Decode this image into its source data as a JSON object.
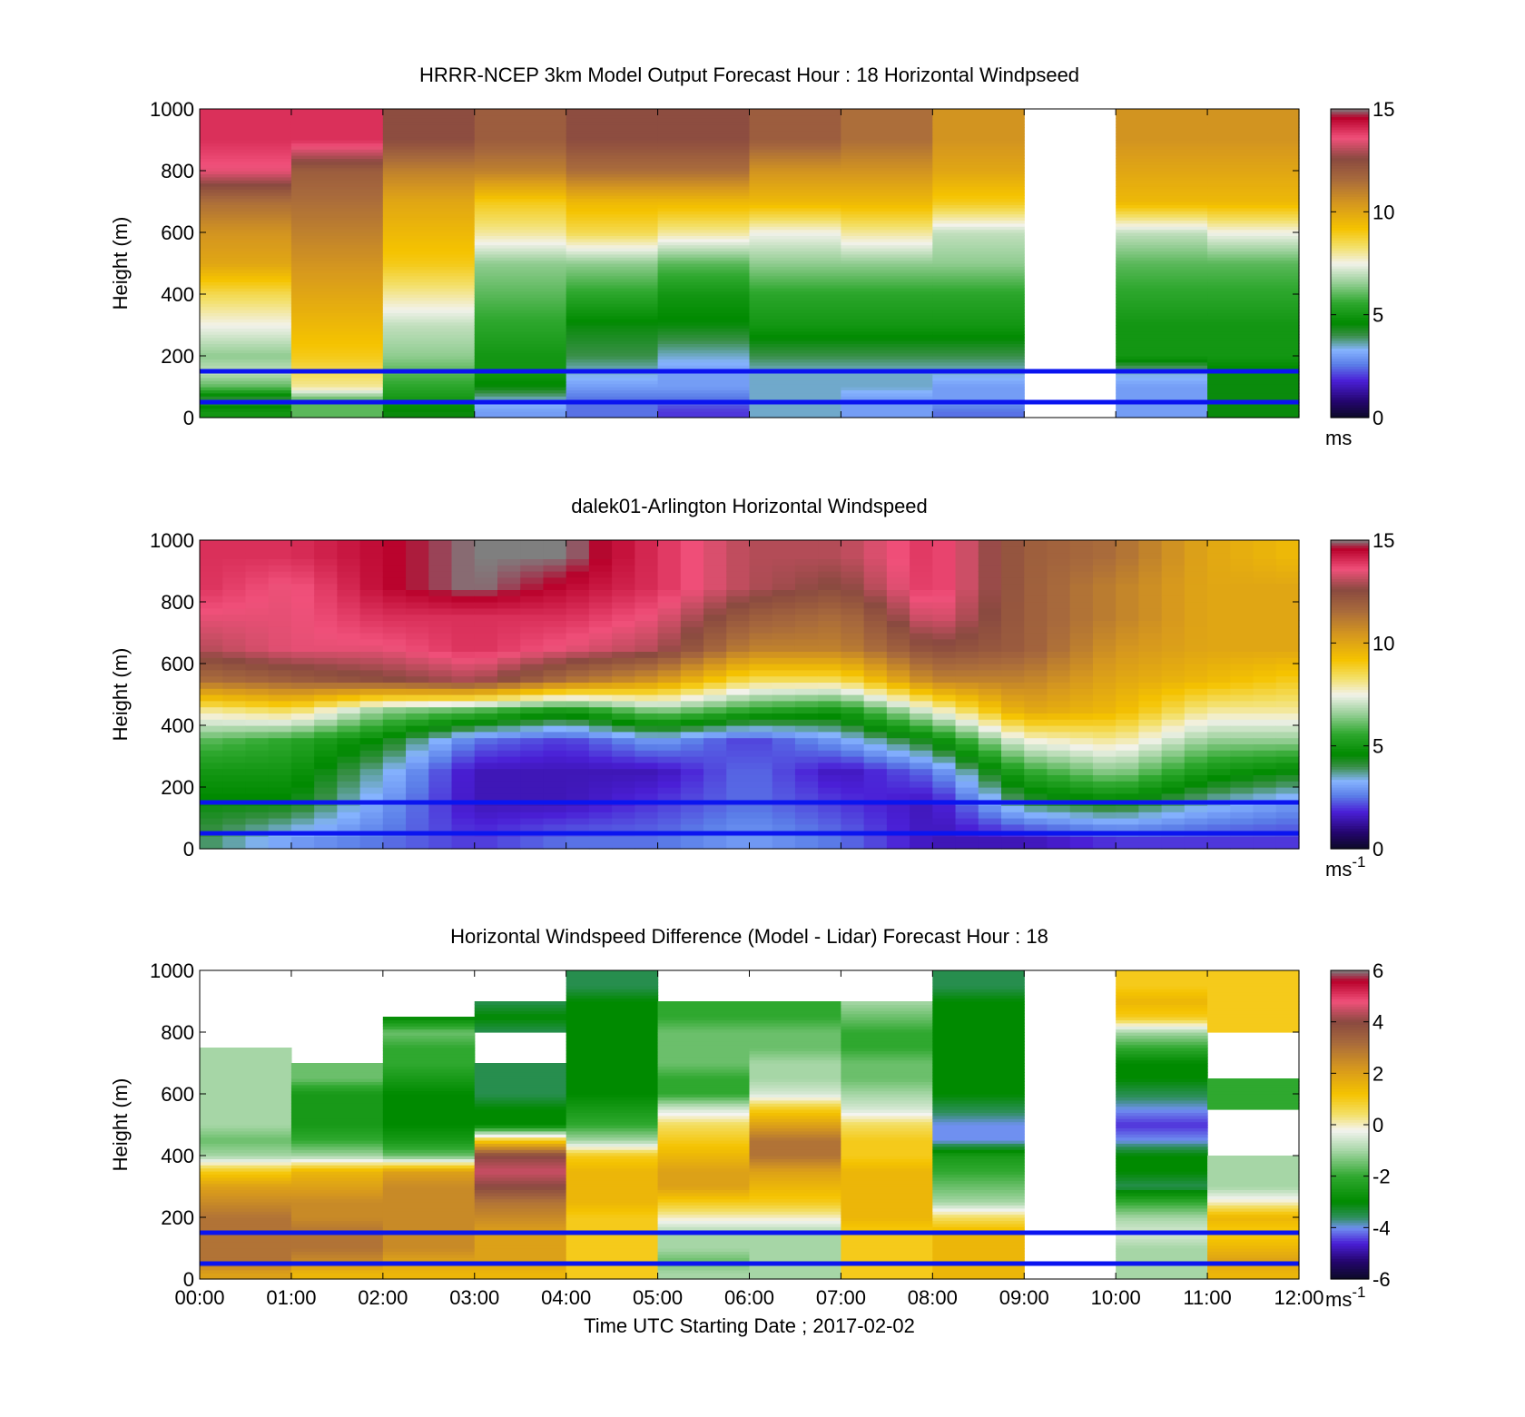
{
  "figure": {
    "xlabel": "Time UTC  Starting Date ; 2017-02-02",
    "x_ticks": [
      "00:00",
      "01:00",
      "02:00",
      "03:00",
      "04:00",
      "05:00",
      "06:00",
      "07:00",
      "08:00",
      "09:00",
      "10:00",
      "11:00",
      "12:00"
    ]
  },
  "colors": {
    "reference_lines": "#0a14f0",
    "missing": "#ffffff"
  },
  "chart_data": [
    {
      "type": "heatmap",
      "title": "HRRR-NCEP 3km Model Output   Forecast Hour : 18 Horizontal Windpseed",
      "ylabel": "Height (m)",
      "xlim": [
        0,
        12
      ],
      "ylim": [
        0,
        1000
      ],
      "y_ticks": [
        "0",
        "200",
        "400",
        "600",
        "800",
        "1000"
      ],
      "colorbar": {
        "min": 0,
        "max": 15,
        "ticks": [
          "0",
          "5",
          "10",
          "15"
        ],
        "unit": "ms",
        "unit_sup": ""
      },
      "reference_lines_m": [
        50,
        150
      ],
      "missing_columns_hours": [
        9
      ],
      "columns_hours": [
        0,
        1,
        2,
        3,
        4,
        5,
        6,
        7,
        8,
        10,
        11
      ],
      "heights_m": [
        20,
        60,
        100,
        150,
        200,
        300,
        400,
        500,
        600,
        700,
        800,
        900
      ],
      "values": [
        [
          5,
          4,
          6,
          7,
          6.5,
          7.5,
          8.5,
          10,
          10.5,
          11.5,
          13.5,
          14
        ],
        [
          6,
          6,
          8,
          8.5,
          9,
          9.5,
          10,
          10.5,
          11,
          11.5,
          12,
          14
        ],
        [
          4.5,
          5,
          5.5,
          6,
          6.5,
          7,
          8,
          9,
          9.5,
          10,
          11,
          12.5
        ],
        [
          3,
          3.5,
          4.5,
          5,
          5,
          5.5,
          6,
          6.5,
          8,
          9,
          11,
          12
        ],
        [
          2.5,
          2.5,
          3,
          3.5,
          4,
          4.5,
          5.5,
          6.5,
          8.5,
          9.5,
          11.5,
          12.5
        ],
        [
          2,
          2.5,
          3,
          3,
          3.5,
          4.5,
          5,
          6,
          8,
          9.5,
          11.5,
          12.5
        ],
        [
          3.5,
          3.5,
          3.5,
          3.5,
          4,
          5,
          5.5,
          6.5,
          7.5,
          9.5,
          10.5,
          12
        ],
        [
          3,
          3,
          3.5,
          3.5,
          4,
          5,
          5.5,
          6.5,
          8,
          9.5,
          10.5,
          11.5
        ],
        [
          2.5,
          3,
          3,
          3.5,
          4,
          5,
          5.5,
          6.5,
          7,
          9,
          10,
          10.5
        ],
        [
          3,
          3,
          3,
          3.5,
          5,
          5,
          5.5,
          6,
          7,
          9.5,
          10,
          10.5
        ],
        [
          4.5,
          4.5,
          4.5,
          4.5,
          5,
          5,
          5.5,
          6,
          7.5,
          9.5,
          10,
          10.5
        ]
      ]
    },
    {
      "type": "heatmap",
      "title": "dalek01-Arlington  Horizontal Windspeed",
      "ylabel": "Height (m)",
      "xlim": [
        0,
        12
      ],
      "ylim": [
        0,
        1000
      ],
      "y_ticks": [
        "0",
        "200",
        "400",
        "600",
        "800",
        "1000"
      ],
      "colorbar": {
        "min": 0,
        "max": 15,
        "ticks": [
          "0",
          "5",
          "10",
          "15"
        ],
        "unit": "ms",
        "unit_sup": "-1"
      },
      "reference_lines_m": [
        50,
        150
      ],
      "profile_hours": [
        0,
        1,
        2,
        3,
        4,
        5,
        6,
        7,
        8,
        9,
        10,
        11,
        11.9
      ],
      "profile_heights_m": [
        30,
        150,
        250,
        350,
        450,
        550,
        650,
        750,
        850,
        950
      ],
      "values": [
        [
          4,
          4.5,
          5,
          6,
          8,
          11.5,
          13,
          13.5,
          14,
          14
        ],
        [
          3,
          4.5,
          5,
          5.5,
          8.5,
          12,
          13.5,
          13.5,
          13.5,
          14
        ],
        [
          2.5,
          3,
          3.5,
          4.5,
          6.5,
          12.5,
          13.5,
          14,
          14.5,
          14.5
        ],
        [
          2,
          1.5,
          1.5,
          2.5,
          6,
          13,
          14,
          14,
          15,
          15
        ],
        [
          2.5,
          1.5,
          1.5,
          2,
          5,
          11.5,
          13.5,
          14,
          14.5,
          15
        ],
        [
          2.5,
          2,
          1.5,
          3,
          6.5,
          10.5,
          13,
          13.5,
          14,
          14
        ],
        [
          3,
          2.5,
          2.5,
          2,
          5.5,
          8.5,
          11,
          12,
          13,
          13
        ],
        [
          2.5,
          2,
          1.5,
          3,
          5,
          8.5,
          11,
          11.5,
          12.5,
          13
        ],
        [
          1.5,
          1.5,
          2.5,
          4.5,
          7.5,
          11,
          12.5,
          13.5,
          14,
          14
        ],
        [
          1.5,
          4,
          5.5,
          7.5,
          10,
          11,
          12,
          12,
          12,
          12
        ],
        [
          2,
          4.5,
          6.5,
          8,
          9.5,
          10,
          10.5,
          11,
          11,
          11.5
        ],
        [
          2,
          3.5,
          5,
          6.5,
          8,
          9.5,
          10,
          10,
          10,
          10
        ],
        [
          2,
          3,
          4.5,
          6.5,
          8,
          9,
          10,
          10,
          10,
          9.5
        ]
      ]
    },
    {
      "type": "heatmap",
      "title": "Horizontal Windspeed Difference (Model - Lidar) Forecast Hour : 18",
      "ylabel": "Height (m)",
      "xlim": [
        0,
        12
      ],
      "ylim": [
        0,
        1000
      ],
      "y_ticks": [
        "0",
        "200",
        "400",
        "600",
        "800",
        "1000"
      ],
      "colorbar": {
        "min": -6,
        "max": 6,
        "ticks": [
          "-6",
          "-4",
          "-2",
          "0",
          "2",
          "4",
          "6"
        ],
        "unit": "ms",
        "unit_sup": "-1"
      },
      "reference_lines_m": [
        50,
        150
      ],
      "missing_columns_hours": [
        9
      ],
      "columns_hours": [
        0,
        1,
        2,
        3,
        4,
        5,
        6,
        7,
        8,
        10,
        11
      ],
      "heights_m": [
        20,
        60,
        100,
        150,
        200,
        250,
        300,
        350,
        400,
        450,
        500,
        550,
        600,
        650,
        700,
        750,
        800,
        850,
        900,
        950
      ],
      "values": [
        [
          2,
          3,
          3,
          3,
          3,
          2.5,
          2,
          1,
          -1,
          -1.5,
          -1,
          -1,
          -1,
          -1,
          -1,
          -1,
          null,
          null,
          null,
          null
        ],
        [
          1.5,
          2.5,
          3,
          3,
          2.5,
          2.5,
          2,
          1.5,
          -1,
          -2,
          -2.5,
          -2.5,
          -2.5,
          -1.5,
          -1.5,
          null,
          null,
          null,
          null,
          null
        ],
        [
          1.5,
          2,
          2.5,
          2.5,
          2.5,
          2.5,
          2.5,
          2,
          -1.5,
          -2.5,
          -3,
          -3,
          -3,
          -2.5,
          -2,
          -2,
          -1.5,
          -3,
          null,
          null
        ],
        [
          1.5,
          2,
          2,
          2,
          2.5,
          3,
          4,
          4.5,
          4,
          1,
          -3,
          -3,
          -3.5,
          -3.5,
          -3.5,
          null,
          -3.5,
          -3,
          -3.5,
          null
        ],
        [
          1,
          1,
          1,
          1,
          1,
          1.5,
          1.5,
          1.5,
          1,
          -1,
          -2,
          -2.5,
          -3,
          -3,
          -3,
          -3,
          -3,
          -3,
          -3,
          -3.5
        ],
        [
          -1,
          -1.5,
          -1,
          -1,
          0,
          1,
          2,
          2,
          1.5,
          1,
          0.5,
          -0.5,
          -2,
          -2,
          -1.5,
          -1.5,
          -1.5,
          -2,
          -2,
          null
        ],
        [
          -1,
          -1,
          -1,
          -1,
          0,
          1,
          1.5,
          2,
          3,
          3,
          2,
          1,
          -0.5,
          -1,
          -1,
          -1.5,
          -1.5,
          -2,
          -2,
          null
        ],
        [
          1,
          1,
          1,
          1,
          1.5,
          1.5,
          1.5,
          1.5,
          1,
          1,
          0.5,
          -0.5,
          -1,
          -1.5,
          -1.5,
          -2,
          -2,
          -1.5,
          -1,
          null
        ],
        [
          1.5,
          1.5,
          1.5,
          1.5,
          0.5,
          -1,
          -1.5,
          -2,
          -2.5,
          -4,
          -4,
          -3.5,
          -3,
          -3,
          -3,
          -3,
          -3,
          -3,
          -3,
          -3.5
        ],
        [
          -1,
          -1,
          -1,
          -0.5,
          -1,
          -2,
          -3.5,
          -3,
          -3,
          -4,
          -4.5,
          -4,
          -3.5,
          -3,
          -3,
          -2,
          -1,
          1,
          1.5,
          1
        ],
        [
          1.5,
          2,
          1.5,
          1,
          1.5,
          0,
          -1,
          -1,
          -1,
          null,
          null,
          -2,
          -2,
          -2,
          null,
          null,
          1,
          1,
          1,
          1
        ]
      ]
    }
  ]
}
